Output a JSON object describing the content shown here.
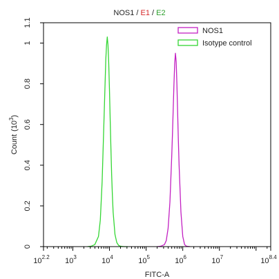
{
  "chart_data": {
    "type": "area",
    "title_parts": [
      {
        "text": "NOS1",
        "color": "#222222"
      },
      {
        "text": " / ",
        "color": "#222222"
      },
      {
        "text": "E1",
        "color": "#d62728"
      },
      {
        "text": " / ",
        "color": "#222222"
      },
      {
        "text": "E2",
        "color": "#2ca02c"
      }
    ],
    "xlabel": "FITC-A",
    "ylabel": "Count",
    "ylabel_unit_prefix": "(10",
    "ylabel_unit_exp": "3",
    "ylabel_unit_suffix": ")",
    "x_scale": "log",
    "xlim": [
      2.2,
      8.4
    ],
    "ylim": [
      0,
      1.1
    ],
    "grid": false,
    "legend_position": "top-right",
    "x_ticks": [
      {
        "value": 2.2,
        "base": "10",
        "exp": "2.2"
      },
      {
        "value": 3,
        "base": "10",
        "exp": "3"
      },
      {
        "value": 4,
        "base": "10",
        "exp": "4"
      },
      {
        "value": 5,
        "base": "10",
        "exp": "5"
      },
      {
        "value": 6,
        "base": "10",
        "exp": "6"
      },
      {
        "value": 7,
        "base": "10",
        "exp": "7"
      },
      {
        "value": 8.4,
        "base": "10",
        "exp": "8.4"
      }
    ],
    "y_ticks": [
      {
        "value": 0,
        "label": "0"
      },
      {
        "value": 0.2,
        "label": "0.2"
      },
      {
        "value": 0.4,
        "label": "0.4"
      },
      {
        "value": 0.6,
        "label": "0.6"
      },
      {
        "value": 0.8,
        "label": "0.8"
      },
      {
        "value": 1,
        "label": "1"
      },
      {
        "value": 1.1,
        "label": "1.1"
      }
    ],
    "series": [
      {
        "name": "NOS1",
        "color": "#c21fc2",
        "x_log10": [
          5.3,
          5.4,
          5.5,
          5.55,
          5.6,
          5.65,
          5.7,
          5.72,
          5.74,
          5.76,
          5.78,
          5.8,
          5.82,
          5.84,
          5.86,
          5.88,
          5.9,
          5.95,
          6.0,
          6.05,
          6.1,
          6.2
        ],
        "y": [
          0,
          0.002,
          0.01,
          0.03,
          0.09,
          0.22,
          0.45,
          0.56,
          0.68,
          0.8,
          0.9,
          0.95,
          0.91,
          0.8,
          0.66,
          0.52,
          0.4,
          0.17,
          0.05,
          0.01,
          0.002,
          0
        ]
      },
      {
        "name": "Isotype control",
        "color": "#33d633",
        "x_log10": [
          3.4,
          3.5,
          3.6,
          3.7,
          3.75,
          3.8,
          3.85,
          3.9,
          3.92,
          3.94,
          3.96,
          3.98,
          4.0,
          4.02,
          4.04,
          4.06,
          4.08,
          4.1,
          4.15,
          4.2,
          4.25,
          4.3,
          4.4,
          4.5
        ],
        "y": [
          0,
          0.002,
          0.01,
          0.05,
          0.13,
          0.32,
          0.62,
          0.92,
          0.99,
          1.03,
          0.99,
          0.9,
          0.77,
          0.62,
          0.48,
          0.35,
          0.25,
          0.17,
          0.06,
          0.02,
          0.006,
          0.002,
          0,
          0
        ]
      }
    ]
  }
}
